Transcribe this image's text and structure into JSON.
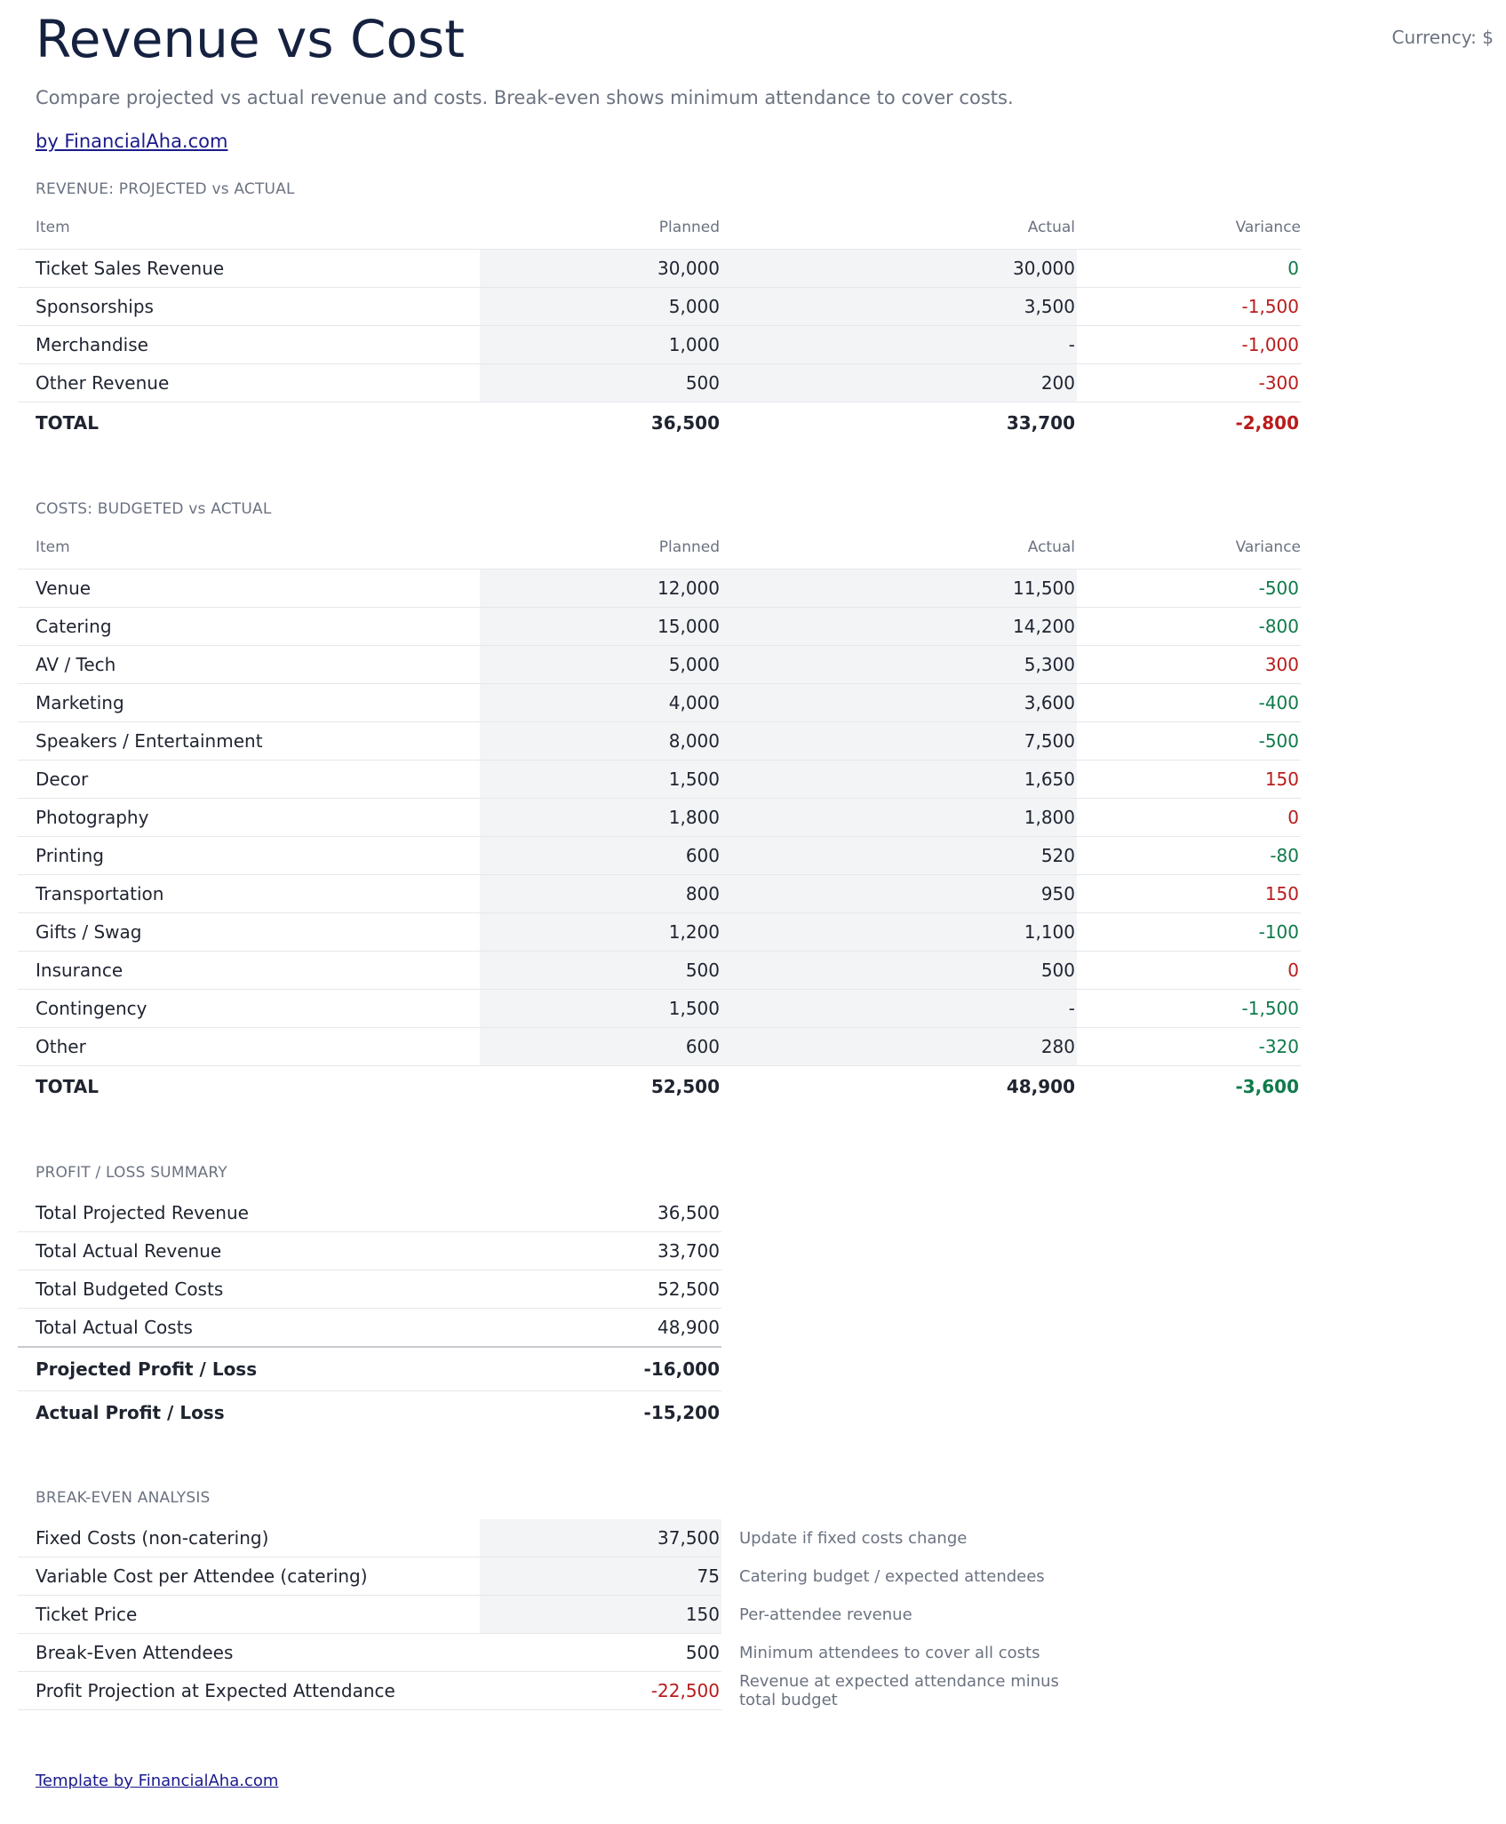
{
  "header": {
    "title": "Revenue vs Cost",
    "currency": "Currency: $",
    "subtitle": "Compare projected vs actual revenue and costs. Break-even shows minimum attendance to cover costs.",
    "byline": "by FinancialAha.com"
  },
  "revenue": {
    "label": "REVENUE: PROJECTED vs ACTUAL",
    "columns": [
      "Item",
      "Planned",
      "Actual",
      "Variance"
    ],
    "rows": [
      {
        "item": "Ticket Sales Revenue",
        "planned": "30,000",
        "actual": "30,000",
        "variance": "0"
      },
      {
        "item": "Sponsorships",
        "planned": "5,000",
        "actual": "3,500",
        "variance": "-1,500"
      },
      {
        "item": "Merchandise",
        "planned": "1,000",
        "actual": "-",
        "variance": "-1,000"
      },
      {
        "item": "Other Revenue",
        "planned": "500",
        "actual": "200",
        "variance": "-300"
      }
    ],
    "total": {
      "item": "TOTAL",
      "planned": "36,500",
      "actual": "33,700",
      "variance": "-2,800"
    }
  },
  "costs": {
    "label": "COSTS: BUDGETED vs ACTUAL",
    "columns": [
      "Item",
      "Planned",
      "Actual",
      "Variance"
    ],
    "rows": [
      {
        "item": "Venue",
        "planned": "12,000",
        "actual": "11,500",
        "variance": "-500"
      },
      {
        "item": "Catering",
        "planned": "15,000",
        "actual": "14,200",
        "variance": "-800"
      },
      {
        "item": "AV / Tech",
        "planned": "5,000",
        "actual": "5,300",
        "variance": "300"
      },
      {
        "item": "Marketing",
        "planned": "4,000",
        "actual": "3,600",
        "variance": "-400"
      },
      {
        "item": "Speakers / Entertainment",
        "planned": "8,000",
        "actual": "7,500",
        "variance": "-500"
      },
      {
        "item": "Decor",
        "planned": "1,500",
        "actual": "1,650",
        "variance": "150"
      },
      {
        "item": "Photography",
        "planned": "1,800",
        "actual": "1,800",
        "variance": "0"
      },
      {
        "item": "Printing",
        "planned": "600",
        "actual": "520",
        "variance": "-80"
      },
      {
        "item": "Transportation",
        "planned": "800",
        "actual": "950",
        "variance": "150"
      },
      {
        "item": "Gifts / Swag",
        "planned": "1,200",
        "actual": "1,100",
        "variance": "-100"
      },
      {
        "item": "Insurance",
        "planned": "500",
        "actual": "500",
        "variance": "0"
      },
      {
        "item": "Contingency",
        "planned": "1,500",
        "actual": "-",
        "variance": "-1,500"
      },
      {
        "item": "Other",
        "planned": "600",
        "actual": "280",
        "variance": "-320"
      }
    ],
    "total": {
      "item": "TOTAL",
      "planned": "52,500",
      "actual": "48,900",
      "variance": "-3,600"
    }
  },
  "summary": {
    "label": "PROFIT / LOSS SUMMARY",
    "rows": [
      {
        "item": "Total Projected Revenue",
        "value": "36,500"
      },
      {
        "item": "Total Actual Revenue",
        "value": "33,700"
      },
      {
        "item": "Total Budgeted Costs",
        "value": "52,500"
      },
      {
        "item": "Total Actual Costs",
        "value": "48,900"
      }
    ],
    "projected_pl": {
      "item": "Projected Profit / Loss",
      "value": "-16,000"
    },
    "actual_pl": {
      "item": "Actual Profit / Loss",
      "value": "-15,200"
    }
  },
  "breakeven": {
    "label": "BREAK-EVEN ANALYSIS",
    "rows": [
      {
        "item": "Fixed Costs (non-catering)",
        "value": "37,500",
        "note": "Update if fixed costs change"
      },
      {
        "item": "Variable Cost per Attendee (catering)",
        "value": "75",
        "note": "Catering budget / expected attendees"
      },
      {
        "item": "Ticket Price",
        "value": "150",
        "note": "Per-attendee revenue"
      },
      {
        "item": "Break-Even Attendees",
        "value": "500",
        "note": "Minimum attendees to cover all costs"
      },
      {
        "item": "Profit Projection at Expected Attendance",
        "value": "-22,500",
        "note": "Revenue at expected attendance minus total budget"
      }
    ]
  },
  "footer": {
    "link": "Template by FinancialAha.com"
  },
  "colors": {
    "favorable": "#0f7a4a",
    "unfavorable": "#b91c1c",
    "input_shade": "#f3f4f6"
  }
}
